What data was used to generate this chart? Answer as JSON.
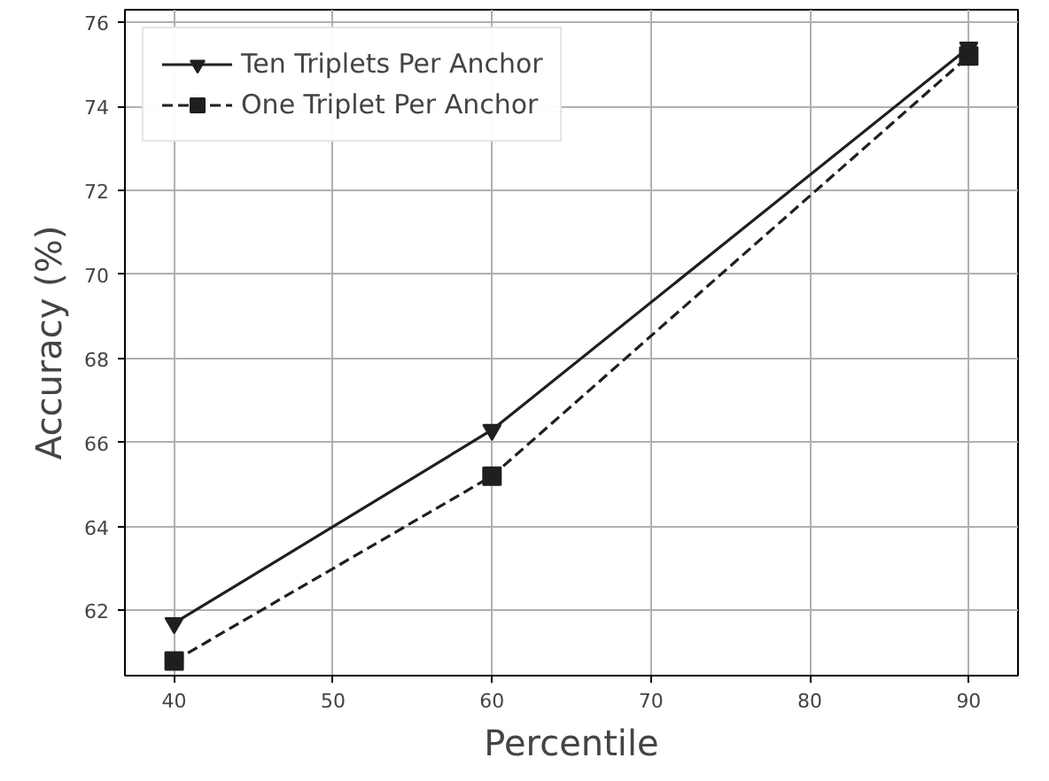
{
  "chart_data": {
    "type": "line",
    "xlabel": "Percentile",
    "ylabel": "Accuracy (%)",
    "x": [
      40,
      60,
      90
    ],
    "series": [
      {
        "name": "Ten Triplets Per Anchor",
        "color": "#1f1f1f",
        "values": [
          61.7,
          66.3,
          75.4
        ],
        "marker": "triangle_down",
        "line_style": "solid"
      },
      {
        "name": "One Triplet Per Anchor",
        "color": "#1f1f1f",
        "values": [
          60.8,
          65.2,
          75.2
        ],
        "marker": "square",
        "line_style": "dashed"
      }
    ],
    "xlim": [
      36.9,
      93.1
    ],
    "ylim": [
      60.45,
      76.3
    ],
    "xticks": [
      40,
      50,
      60,
      70,
      80,
      90
    ],
    "yticks": [
      62,
      64,
      66,
      68,
      70,
      72,
      74,
      76
    ],
    "grid": true,
    "legend": "top left"
  }
}
